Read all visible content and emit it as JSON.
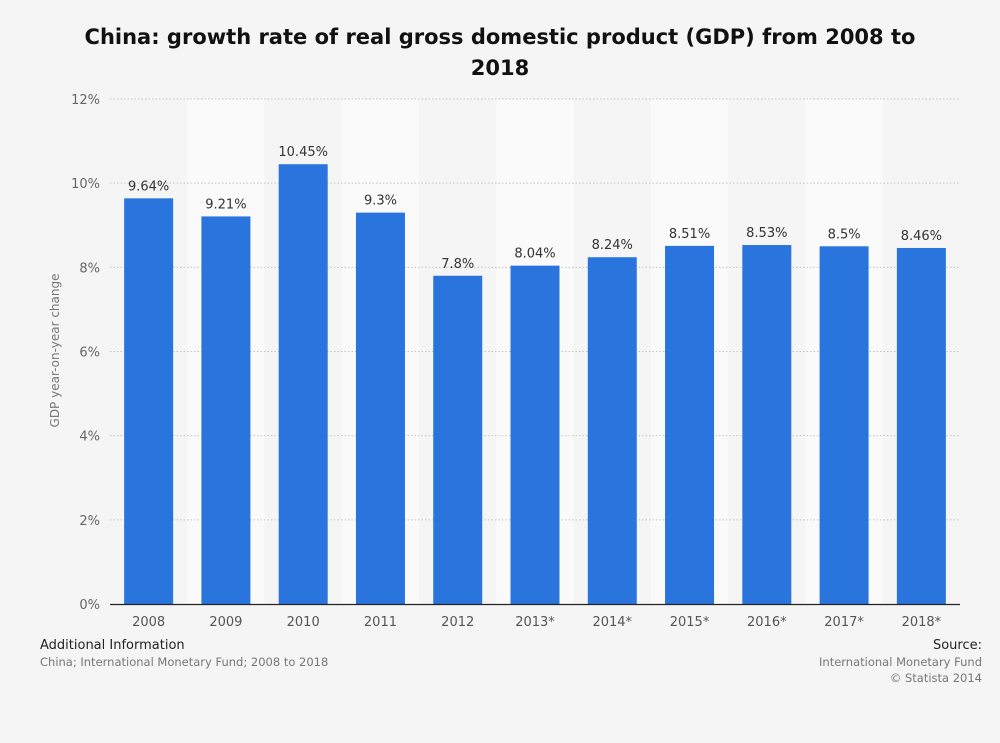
{
  "title": "China: growth rate of real gross domestic product (GDP) from 2008 to 2018",
  "chart_data": {
    "type": "bar",
    "title": "China: growth rate of real gross domestic product (GDP) from 2008 to 2018",
    "xlabel": "",
    "ylabel": "GDP year-on-year change",
    "categories": [
      "2008",
      "2009",
      "2010",
      "2011",
      "2012",
      "2013*",
      "2014*",
      "2015*",
      "2016*",
      "2017*",
      "2018*"
    ],
    "values": [
      9.64,
      9.21,
      10.45,
      9.3,
      7.8,
      8.04,
      8.24,
      8.51,
      8.53,
      8.5,
      8.46
    ],
    "data_labels": [
      "9.64%",
      "9.21%",
      "10.45%",
      "9.3%",
      "7.8%",
      "8.04%",
      "8.24%",
      "8.51%",
      "8.53%",
      "8.5%",
      "8.46%"
    ],
    "ylim": [
      0,
      12
    ],
    "yticks": [
      0,
      2,
      4,
      6,
      8,
      10,
      12
    ],
    "ytick_labels": [
      "0%",
      "2%",
      "4%",
      "6%",
      "8%",
      "10%",
      "12%"
    ],
    "grid": true,
    "legend": "none"
  },
  "colors": {
    "bar": "#2a75dd",
    "band": "#fafafa",
    "background": "#f5f5f5"
  },
  "footer": {
    "additional_heading": "Additional Information",
    "additional_text": "China; International Monetary Fund; 2008 to 2018",
    "source_heading": "Source:",
    "source_text": "International Monetary Fund",
    "copyright": "© Statista 2014"
  }
}
